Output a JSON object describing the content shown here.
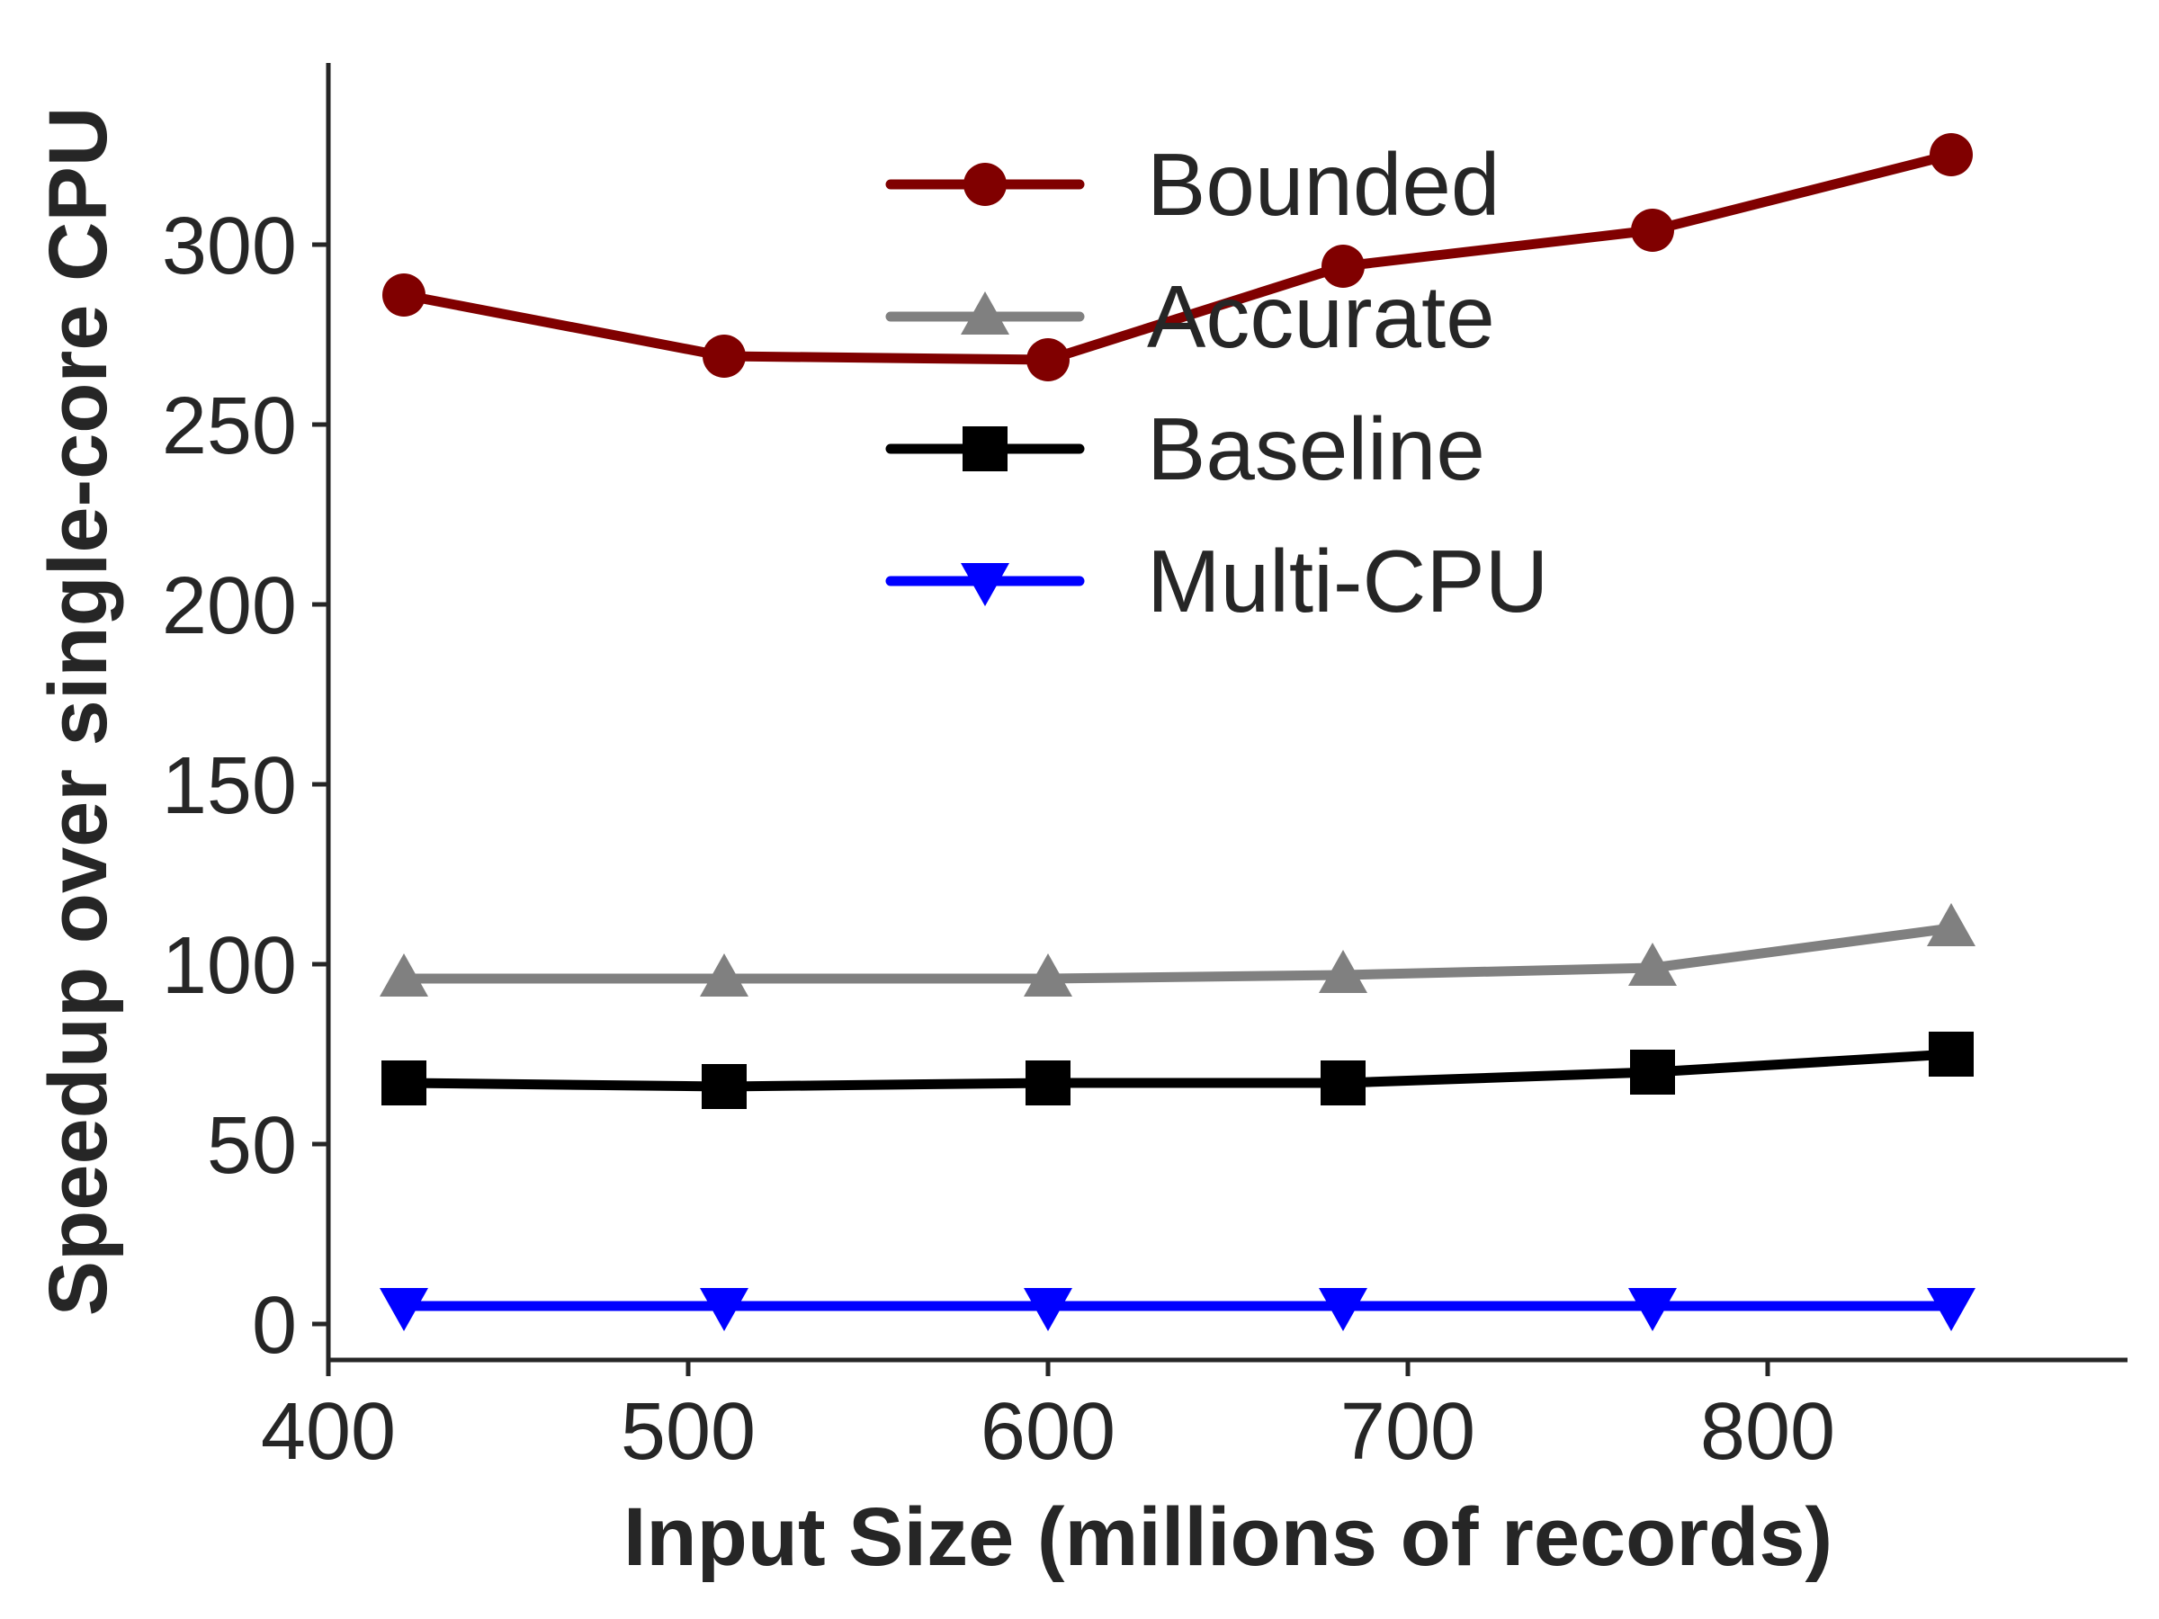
{
  "chart_data": {
    "type": "line",
    "title": "",
    "xlabel": "Input Size (millions of records)",
    "ylabel": "Speedup over single-core CPU",
    "xlim": [
      400,
      900
    ],
    "ylim": [
      -10,
      350
    ],
    "xticks": [
      400,
      500,
      600,
      700,
      800
    ],
    "yticks": [
      0,
      50,
      100,
      150,
      200,
      250,
      300
    ],
    "grid": false,
    "legend_position": "top-center",
    "x": [
      421,
      510,
      600,
      682,
      768,
      851
    ],
    "series": [
      {
        "name": "Bounded",
        "color": "#800000",
        "marker": "circle",
        "values": [
          286,
          269,
          268,
          294,
          304,
          325
        ]
      },
      {
        "name": "Accurate",
        "color": "#808080",
        "marker": "triangle-up",
        "values": [
          96,
          96,
          96,
          97,
          99,
          110
        ]
      },
      {
        "name": "Baseline",
        "color": "#000000",
        "marker": "square",
        "values": [
          67,
          66,
          67,
          67,
          70,
          75
        ]
      },
      {
        "name": "Multi-CPU",
        "color": "#0000ff",
        "marker": "triangle-down",
        "values": [
          5,
          5,
          5,
          5,
          5,
          5
        ]
      }
    ]
  }
}
